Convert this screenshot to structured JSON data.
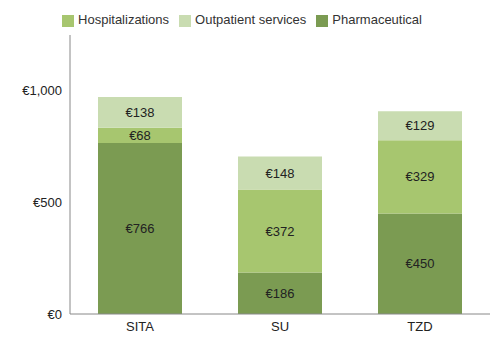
{
  "chart_data": {
    "type": "bar",
    "stacked": true,
    "data_labels": true,
    "legend": "top",
    "grid": false,
    "categories": [
      "SITA",
      "SU",
      "TZD"
    ],
    "ylim": [
      0,
      1250
    ],
    "yticks": [
      {
        "value": 0,
        "label": "€0"
      },
      {
        "value": 500,
        "label": "€500"
      },
      {
        "value": 1000,
        "label": "€1,000"
      }
    ],
    "series": [
      {
        "name": "Pharmaceutical",
        "color": "#7b9b52",
        "values": [
          766,
          186,
          450
        ],
        "value_labels": [
          "€766",
          "€186",
          "€450"
        ]
      },
      {
        "name": "Hospitalizations",
        "color": "#a7c66f",
        "values": [
          68,
          372,
          329
        ],
        "value_labels": [
          "€68",
          "€372",
          "€329"
        ]
      },
      {
        "name": "Outpatient services",
        "color": "#c9dcb1",
        "values": [
          138,
          148,
          129
        ],
        "value_labels": [
          "€138",
          "€148",
          "€129"
        ]
      }
    ]
  }
}
